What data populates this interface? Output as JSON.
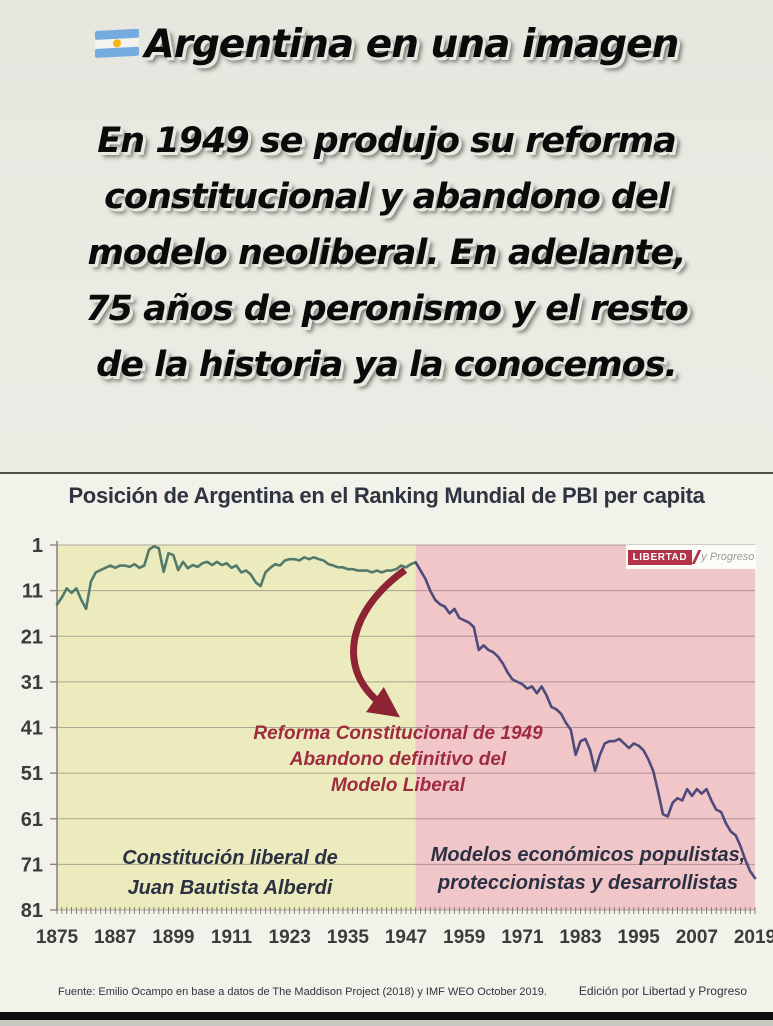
{
  "page": {
    "title": "Argentina en una imagen",
    "statement_lines": [
      "En 1949 se produjo su reforma",
      "constitucional y abandono del",
      "modelo neoliberal. En adelante,",
      "75 años de peronismo y el resto",
      "de la historia ya la conocemos."
    ]
  },
  "chart": {
    "title": "Posición de Argentina en el Ranking Mundial de PBI per capita",
    "logo": {
      "primary": "LIBERTAD",
      "secondary": "y Progreso"
    },
    "annotations": {
      "reform": {
        "lines": [
          "Reforma Constitucional de 1949",
          "Abandono definitivo del",
          "Modelo Liberal"
        ]
      },
      "liberal_era": {
        "lines": [
          "Constitución liberal de",
          "Juan Bautista Alberdi"
        ]
      },
      "populist_era": {
        "lines": [
          "Modelos económicos populistas,",
          "proteccionistas y desarrollistas"
        ]
      }
    },
    "footer": {
      "source": "Fuente: Emilio Ocampo en base a datos de The Maddison Project (2018) y IMF WEO October 2019.",
      "edition": "Edición por Libertad y Progreso"
    }
  },
  "chart_data": {
    "type": "line",
    "title": "Posición de Argentina en el Ranking Mundial de PBI per capita",
    "xlabel": "",
    "ylabel": "",
    "xlim": [
      1875,
      2019
    ],
    "ylim": [
      1,
      81
    ],
    "y_inverted": true,
    "grid": true,
    "legend": false,
    "xticks": [
      1875,
      1887,
      1899,
      1911,
      1923,
      1935,
      1947,
      1959,
      1971,
      1983,
      1995,
      2007,
      2019
    ],
    "yticks": [
      1,
      11,
      21,
      31,
      41,
      51,
      61,
      71,
      81
    ],
    "split_year": 1949,
    "regions": [
      {
        "label": "liberal-era",
        "from": 1875,
        "to": 1949,
        "color": "#ecebbe"
      },
      {
        "label": "populist-era",
        "from": 1949,
        "to": 2019,
        "color": "#f1c6c9"
      }
    ],
    "line_colors": {
      "pre": "#53796a",
      "post": "#4e4b7a"
    },
    "arrow_color": "#8c2433",
    "x": [
      1875,
      1876,
      1877,
      1878,
      1879,
      1880,
      1881,
      1882,
      1883,
      1884,
      1885,
      1886,
      1887,
      1888,
      1889,
      1890,
      1891,
      1892,
      1893,
      1894,
      1895,
      1896,
      1897,
      1898,
      1899,
      1900,
      1901,
      1902,
      1903,
      1904,
      1905,
      1906,
      1907,
      1908,
      1909,
      1910,
      1911,
      1912,
      1913,
      1914,
      1915,
      1916,
      1917,
      1918,
      1919,
      1920,
      1921,
      1922,
      1923,
      1924,
      1925,
      1926,
      1927,
      1928,
      1929,
      1930,
      1931,
      1932,
      1933,
      1934,
      1935,
      1936,
      1937,
      1938,
      1939,
      1940,
      1941,
      1942,
      1943,
      1944,
      1945,
      1946,
      1947,
      1948,
      1949,
      1950,
      1951,
      1952,
      1953,
      1954,
      1955,
      1956,
      1957,
      1958,
      1959,
      1960,
      1961,
      1962,
      1963,
      1964,
      1965,
      1966,
      1967,
      1968,
      1969,
      1970,
      1971,
      1972,
      1973,
      1974,
      1975,
      1976,
      1977,
      1978,
      1979,
      1980,
      1981,
      1982,
      1983,
      1984,
      1985,
      1986,
      1987,
      1988,
      1989,
      1990,
      1991,
      1992,
      1993,
      1994,
      1995,
      1996,
      1997,
      1998,
      1999,
      2000,
      2001,
      2002,
      2003,
      2004,
      2005,
      2006,
      2007,
      2008,
      2009,
      2010,
      2011,
      2012,
      2013,
      2014,
      2015,
      2016,
      2017,
      2018,
      2019
    ],
    "values": [
      14,
      12.5,
      10.5,
      11.5,
      10.5,
      13,
      15,
      9,
      7,
      6.5,
      6,
      5.5,
      6,
      5.5,
      5.5,
      5.8,
      5.2,
      6,
      5.5,
      2,
      1.3,
      1.7,
      6.9,
      2.8,
      3.2,
      6.5,
      4.7,
      6.1,
      5.4,
      5.8,
      5,
      4.7,
      5.4,
      4.7,
      5.4,
      5,
      6,
      5.5,
      7,
      6.6,
      7.5,
      9.2,
      10,
      7,
      6,
      5.2,
      5.5,
      4.4,
      4.1,
      4.1,
      4.4,
      3.7,
      4.1,
      3.7,
      4.1,
      4.4,
      5.2,
      5.5,
      5.9,
      5.9,
      6.3,
      6.3,
      6.6,
      6.6,
      6.6,
      7,
      6.6,
      7,
      6.6,
      6.6,
      6.3,
      5.5,
      5.9,
      5.2,
      4.8,
      6.6,
      8.4,
      11,
      13,
      14,
      14.5,
      16,
      15,
      17,
      17.5,
      18,
      19,
      24,
      23,
      24,
      24.5,
      25.5,
      27,
      29,
      30.5,
      31,
      31.5,
      32.5,
      32,
      33.5,
      32,
      34,
      36.5,
      37,
      38,
      40,
      41.5,
      47,
      44,
      43.5,
      46,
      50.5,
      47,
      44.5,
      44,
      44,
      43.5,
      44.5,
      45.5,
      44.5,
      45,
      46,
      48,
      50.5,
      55,
      60,
      60.5,
      57.5,
      56.5,
      57,
      54.5,
      56,
      54.5,
      55.5,
      54.5,
      57,
      59,
      59.5,
      62,
      63.8,
      64.6,
      67,
      70,
      72.5,
      74
    ]
  }
}
